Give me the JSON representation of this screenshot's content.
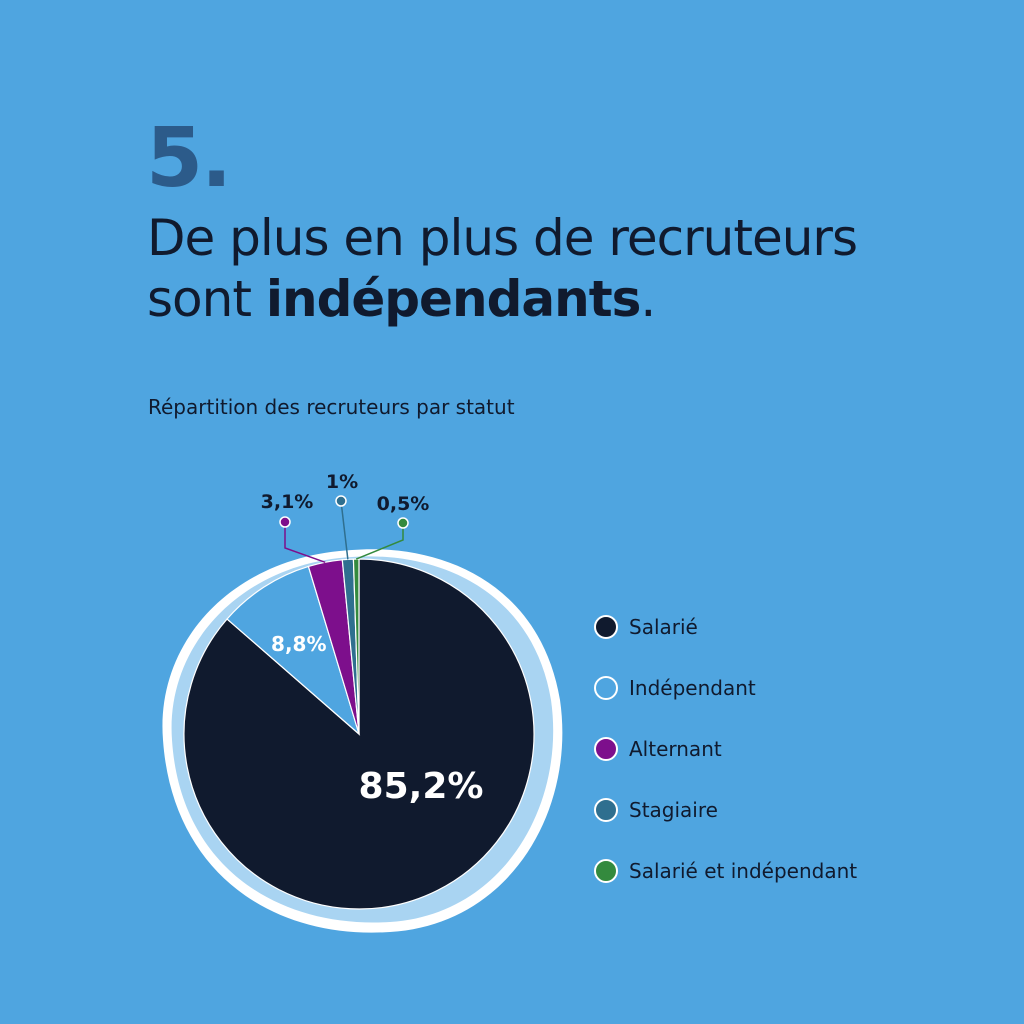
{
  "header": {
    "number": "5.",
    "headline_line1": "De plus en plus de recruteurs",
    "headline_line2_plain": "sont ",
    "headline_bold": "indépendants",
    "headline_end": "."
  },
  "chart_data": {
    "type": "pie",
    "title": "Répartition des recruteurs par statut",
    "slices": [
      {
        "label": "Salarié",
        "value": 85.2,
        "display": "85,2%",
        "color": "#101a2e"
      },
      {
        "label": "Indépendant",
        "value": 8.8,
        "display": "8,8%",
        "color": "#4fa5e0"
      },
      {
        "label": "Alternant",
        "value": 3.1,
        "display": "3,1%",
        "color": "#7d0f8c"
      },
      {
        "label": "Stagiaire",
        "value": 1,
        "display": "1%",
        "color": "#2f6f8f"
      },
      {
        "label": "Salarié et indépendant",
        "value": 0.5,
        "display": "0,5%",
        "color": "#348a3e"
      }
    ],
    "legend_position": "right"
  },
  "colors": {
    "background": "#4fa5e0",
    "ring": "#a9d4f2",
    "outline": "#ffffff",
    "number": "#2c5b8a",
    "text": "#101a2e"
  }
}
